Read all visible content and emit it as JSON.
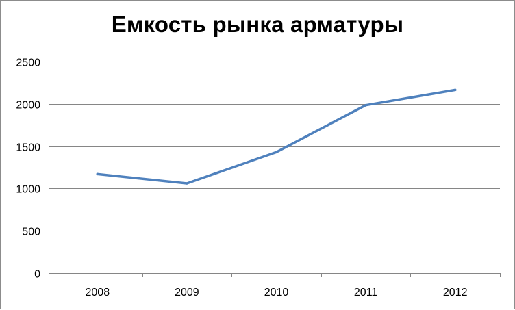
{
  "chart_data": {
    "type": "line",
    "title": "Емкость рынка арматуры",
    "x": [
      "2008",
      "2009",
      "2010",
      "2011",
      "2012"
    ],
    "series": [
      {
        "values": [
          1170,
          1060,
          1430,
          1985,
          2165
        ]
      }
    ],
    "ylim": [
      0,
      2500
    ],
    "yticks": [
      0,
      500,
      1000,
      1500,
      2000,
      2500
    ],
    "grid": true,
    "legend": "none",
    "line_color": "#4f81bd",
    "grid_color": "#868686"
  }
}
